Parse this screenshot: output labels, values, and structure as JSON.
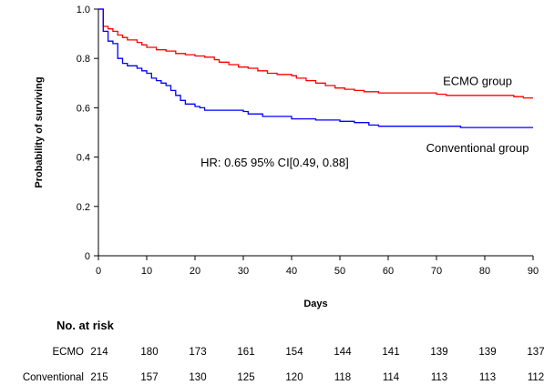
{
  "chart_data": {
    "type": "line",
    "chart_style": "kaplan-meier step curves",
    "title": "",
    "xlabel": "Days",
    "ylabel": "Probability of surviving",
    "xlim": [
      0,
      90
    ],
    "ylim": [
      0,
      1.0
    ],
    "x_ticks": [
      "0",
      "10",
      "20",
      "30",
      "40",
      "50",
      "60",
      "70",
      "80",
      "90"
    ],
    "y_ticks": [
      "0",
      "0.2",
      "0.4",
      "0.6",
      "0.8",
      "1.0"
    ],
    "grid": false,
    "series": [
      {
        "name": "ECMO group",
        "color": "#ff0000",
        "points": [
          [
            0,
            1.0
          ],
          [
            1,
            0.93
          ],
          [
            2,
            0.92
          ],
          [
            3,
            0.91
          ],
          [
            4,
            0.895
          ],
          [
            5,
            0.885
          ],
          [
            6,
            0.875
          ],
          [
            8,
            0.865
          ],
          [
            9,
            0.855
          ],
          [
            10,
            0.845
          ],
          [
            12,
            0.835
          ],
          [
            14,
            0.83
          ],
          [
            16,
            0.82
          ],
          [
            18,
            0.815
          ],
          [
            20,
            0.81
          ],
          [
            22,
            0.805
          ],
          [
            24,
            0.795
          ],
          [
            25,
            0.785
          ],
          [
            27,
            0.775
          ],
          [
            29,
            0.765
          ],
          [
            31,
            0.76
          ],
          [
            33,
            0.75
          ],
          [
            35,
            0.74
          ],
          [
            37,
            0.735
          ],
          [
            40,
            0.73
          ],
          [
            41,
            0.72
          ],
          [
            43,
            0.71
          ],
          [
            45,
            0.7
          ],
          [
            47,
            0.69
          ],
          [
            49,
            0.68
          ],
          [
            51,
            0.675
          ],
          [
            53,
            0.67
          ],
          [
            55,
            0.665
          ],
          [
            58,
            0.66
          ],
          [
            70,
            0.655
          ],
          [
            72,
            0.65
          ],
          [
            86,
            0.645
          ],
          [
            88,
            0.64
          ],
          [
            90,
            0.64
          ]
        ]
      },
      {
        "name": "Conventional group",
        "color": "#0000ff",
        "points": [
          [
            0,
            1.0
          ],
          [
            1,
            0.91
          ],
          [
            2,
            0.87
          ],
          [
            3,
            0.86
          ],
          [
            4,
            0.8
          ],
          [
            5,
            0.78
          ],
          [
            6,
            0.77
          ],
          [
            8,
            0.76
          ],
          [
            9,
            0.75
          ],
          [
            10,
            0.74
          ],
          [
            11,
            0.72
          ],
          [
            12,
            0.71
          ],
          [
            13,
            0.7
          ],
          [
            14,
            0.69
          ],
          [
            15,
            0.67
          ],
          [
            16,
            0.65
          ],
          [
            17,
            0.63
          ],
          [
            18,
            0.615
          ],
          [
            20,
            0.605
          ],
          [
            21,
            0.6
          ],
          [
            22,
            0.59
          ],
          [
            30,
            0.585
          ],
          [
            31,
            0.575
          ],
          [
            34,
            0.565
          ],
          [
            40,
            0.555
          ],
          [
            45,
            0.55
          ],
          [
            50,
            0.545
          ],
          [
            53,
            0.54
          ],
          [
            56,
            0.53
          ],
          [
            58,
            0.525
          ],
          [
            75,
            0.52
          ],
          [
            90,
            0.52
          ]
        ]
      }
    ],
    "annotations": [
      {
        "text": "ECMO group",
        "at": [
          78.5,
          0.71
        ]
      },
      {
        "text": "Conventional group",
        "at": [
          78.5,
          0.44
        ]
      },
      {
        "text": "HR: 0.65 95% CI[0.49, 0.88]",
        "at": [
          36.5,
          0.38
        ]
      }
    ],
    "risk_table": {
      "title": "No. at risk",
      "days": [
        0,
        10,
        20,
        30,
        40,
        50,
        60,
        70,
        80,
        90
      ],
      "rows": [
        {
          "label": "ECMO",
          "values": [
            "214",
            "180",
            "173",
            "161",
            "154",
            "144",
            "141",
            "139",
            "139",
            "137"
          ]
        },
        {
          "label": "Conventional",
          "values": [
            "215",
            "157",
            "130",
            "125",
            "120",
            "118",
            "114",
            "113",
            "113",
            "112"
          ]
        }
      ]
    }
  }
}
